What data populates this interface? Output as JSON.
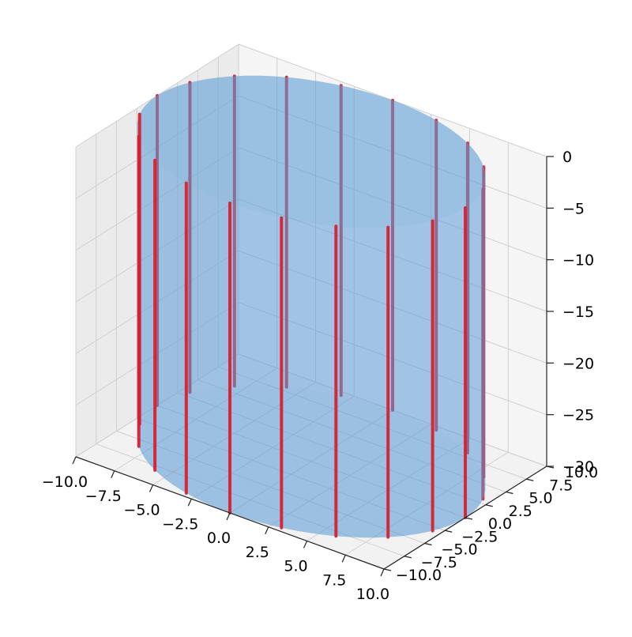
{
  "chart_data": {
    "type": "3d-surface-with-vertical-lines",
    "title": "",
    "xlabel": "",
    "ylabel": "",
    "zlabel": "",
    "xlim": [
      -10,
      10
    ],
    "ylim": [
      -10,
      10
    ],
    "zlim": [
      -30,
      0
    ],
    "x_ticks": [
      "−10.0",
      "−7.5",
      "−5.0",
      "−2.5",
      "0.0",
      "2.5",
      "5.0",
      "7.5",
      "10.0"
    ],
    "y_ticks": [
      "−10.0",
      "−7.5",
      "−5.0",
      "−2.5",
      "0.0",
      "2.5",
      "5.0",
      "7.5",
      "10.0"
    ],
    "z_ticks": [
      "−30",
      "−25",
      "−20",
      "−15",
      "−10",
      "−5",
      "0"
    ],
    "grid": true,
    "series": [
      {
        "kind": "cylinder-surface",
        "radius": 10,
        "z_range": [
          -30,
          0
        ],
        "color": "#5b9bd5",
        "alpha": 0.45
      },
      {
        "kind": "vertical-lines",
        "color": "#d6212f",
        "radius": 10,
        "z_range": [
          -30,
          0
        ],
        "angles_deg": [
          0,
          18,
          36,
          54,
          72,
          90,
          108,
          126,
          144,
          162,
          180,
          198,
          216,
          234,
          252,
          270,
          288,
          306,
          324,
          342
        ]
      }
    ]
  }
}
